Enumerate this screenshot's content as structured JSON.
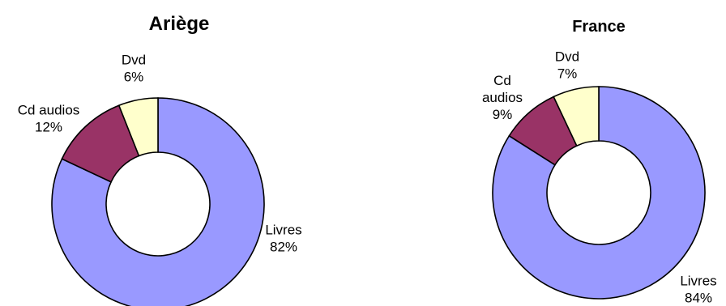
{
  "chart_data": [
    {
      "type": "pie",
      "title": "Ariège",
      "donut": true,
      "categories": [
        "Livres",
        "Cd audios",
        "Dvd"
      ],
      "values": [
        82,
        12,
        6
      ],
      "labels": [
        [
          "Livres",
          "82%"
        ],
        [
          "Cd audios",
          "12%"
        ],
        [
          "Dvd",
          "6%"
        ]
      ],
      "colors": [
        "#9999ff",
        "#993366",
        "#ffffcc"
      ]
    },
    {
      "type": "pie",
      "title": "France",
      "donut": true,
      "categories": [
        "Livres",
        "Cd audios",
        "Dvd"
      ],
      "values": [
        84,
        9,
        7
      ],
      "labels": [
        [
          "Livres",
          "84%"
        ],
        [
          "Cd",
          "audios",
          "9%"
        ],
        [
          "Dvd",
          "7%"
        ]
      ],
      "colors": [
        "#9999ff",
        "#993366",
        "#ffffcc"
      ]
    }
  ]
}
